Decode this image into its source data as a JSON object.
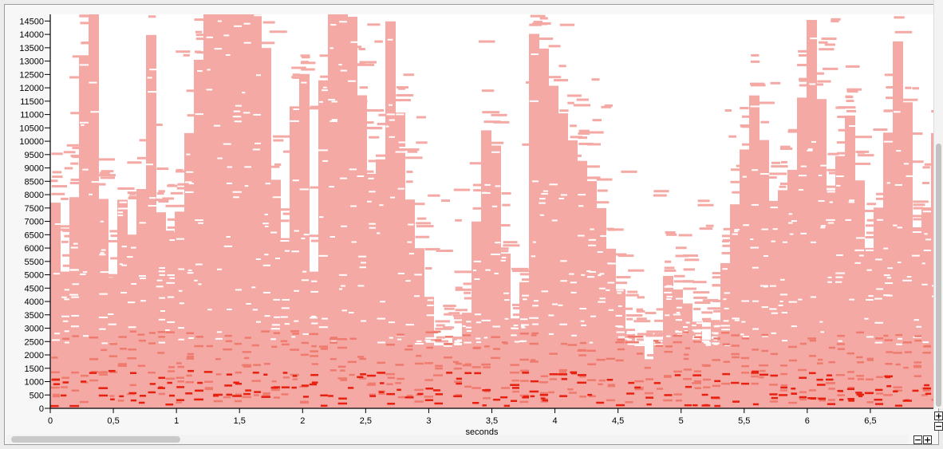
{
  "chart_data": {
    "type": "heatmap",
    "subtype": "spectrogram",
    "xlabel": "seconds",
    "ylabel": "",
    "xlim": [
      0,
      7.0
    ],
    "ylim": [
      0,
      14750
    ],
    "x_ticks": [
      "0",
      "0,5",
      "1",
      "1,5",
      "2",
      "2,5",
      "3",
      "3,5",
      "4",
      "4,5",
      "5",
      "5,5",
      "6",
      "6,5"
    ],
    "y_ticks": [
      "0",
      "500",
      "1000",
      "1500",
      "2000",
      "2500",
      "3000",
      "3500",
      "4000",
      "4500",
      "5000",
      "5500",
      "6000",
      "6500",
      "7000",
      "7500",
      "8000",
      "8500",
      "9000",
      "9500",
      "10000",
      "10500",
      "11000",
      "11500",
      "12000",
      "12500",
      "13000",
      "13500",
      "14000",
      "14500"
    ],
    "colors": {
      "low_energy": "#f4a9a5",
      "mid_energy": "#ef7b6e",
      "high_energy": "#e8200f"
    },
    "envelope_max_hz": [
      {
        "t": 0.0,
        "f": 7700
      },
      {
        "t": 0.1,
        "f": 4300
      },
      {
        "t": 0.25,
        "f": 14750
      },
      {
        "t": 0.35,
        "f": 14750
      },
      {
        "t": 0.4,
        "f": 3000
      },
      {
        "t": 0.55,
        "f": 8500
      },
      {
        "t": 0.65,
        "f": 5000
      },
      {
        "t": 0.75,
        "f": 14750
      },
      {
        "t": 0.85,
        "f": 6000
      },
      {
        "t": 1.0,
        "f": 7500
      },
      {
        "t": 1.1,
        "f": 12000
      },
      {
        "t": 1.2,
        "f": 14750
      },
      {
        "t": 1.35,
        "f": 14750
      },
      {
        "t": 1.5,
        "f": 14750
      },
      {
        "t": 1.65,
        "f": 14750
      },
      {
        "t": 1.8,
        "f": 5000
      },
      {
        "t": 1.95,
        "f": 14750
      },
      {
        "t": 2.05,
        "f": 5000
      },
      {
        "t": 2.15,
        "f": 14750
      },
      {
        "t": 2.35,
        "f": 14750
      },
      {
        "t": 2.55,
        "f": 7000
      },
      {
        "t": 2.65,
        "f": 14750
      },
      {
        "t": 2.8,
        "f": 8000
      },
      {
        "t": 3.05,
        "f": 2000
      },
      {
        "t": 3.25,
        "f": 3000
      },
      {
        "t": 3.45,
        "f": 12000
      },
      {
        "t": 3.6,
        "f": 4000
      },
      {
        "t": 3.7,
        "f": 2500
      },
      {
        "t": 3.8,
        "f": 14750
      },
      {
        "t": 3.95,
        "f": 12000
      },
      {
        "t": 4.1,
        "f": 10000
      },
      {
        "t": 4.3,
        "f": 8000
      },
      {
        "t": 4.55,
        "f": 3000
      },
      {
        "t": 4.75,
        "f": 1500
      },
      {
        "t": 4.85,
        "f": 5000
      },
      {
        "t": 5.0,
        "f": 4000
      },
      {
        "t": 5.2,
        "f": 2200
      },
      {
        "t": 5.4,
        "f": 8000
      },
      {
        "t": 5.55,
        "f": 12000
      },
      {
        "t": 5.7,
        "f": 7500
      },
      {
        "t": 5.85,
        "f": 9000
      },
      {
        "t": 6.0,
        "f": 14750
      },
      {
        "t": 6.15,
        "f": 8000
      },
      {
        "t": 6.3,
        "f": 11000
      },
      {
        "t": 6.45,
        "f": 6000
      },
      {
        "t": 6.55,
        "f": 8000
      },
      {
        "t": 6.7,
        "f": 14750
      },
      {
        "t": 6.85,
        "f": 5500
      },
      {
        "t": 7.0,
        "f": 11000
      }
    ]
  },
  "controls": {
    "zoom_in_symbol": "+",
    "zoom_out_symbol": "−"
  }
}
